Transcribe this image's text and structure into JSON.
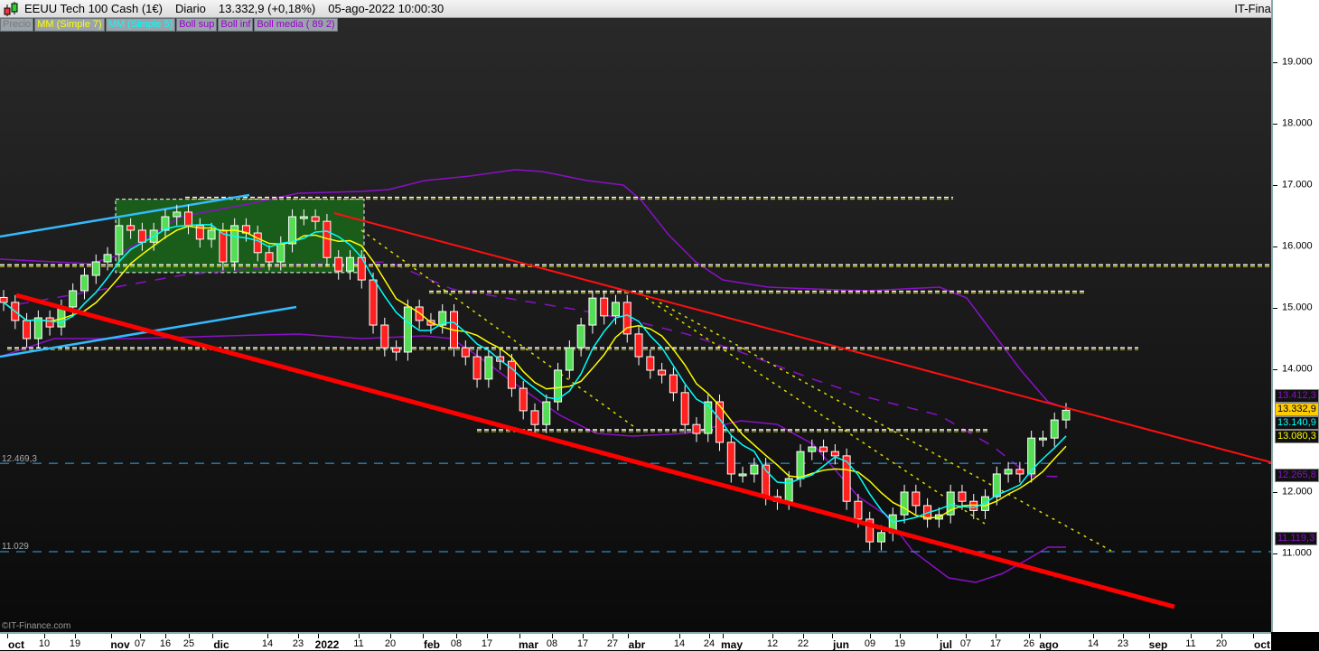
{
  "header": {
    "title": "EEUU Tech 100 Cash (1€)",
    "period": "Diario",
    "price": "13.332,9 (+0,18%)",
    "datetime": "05-ago-2022 10:00:30",
    "brand": "IT-Finance.com"
  },
  "legend": [
    {
      "label": "Precio",
      "color": "#7a7a7a"
    },
    {
      "label": "MM (Simple 7)",
      "color": "#ffff00"
    },
    {
      "label": "MM (Simple 5)",
      "color": "#00ffff"
    },
    {
      "label": "Boll sup",
      "color": "#9900cc"
    },
    {
      "label": "Boll inf",
      "color": "#9900cc"
    },
    {
      "label": "Boll media ( 89 2)",
      "color": "#9900cc"
    }
  ],
  "copyright": "©IT-Finance.com",
  "chart_data": {
    "type": "candlestick",
    "title": "EEUU Tech 100 Cash (1€)",
    "ylim": [
      10000,
      19700
    ],
    "y_ticks": [
      {
        "v": 19000,
        "label": "19.000"
      },
      {
        "v": 18000,
        "label": "18.000"
      },
      {
        "v": 17000,
        "label": "17.000"
      },
      {
        "v": 16000,
        "label": "16.000"
      },
      {
        "v": 15000,
        "label": "15.000"
      },
      {
        "v": 14000,
        "label": "14.000"
      },
      {
        "v": 12000,
        "label": "12.000"
      },
      {
        "v": 11000,
        "label": "11.000"
      }
    ],
    "x_ticks": [
      {
        "label": "oct",
        "bold": true
      },
      {
        "label": "10"
      },
      {
        "label": "19"
      },
      {
        "label": "nov",
        "bold": true
      },
      {
        "label": "07"
      },
      {
        "label": "16"
      },
      {
        "label": "25"
      },
      {
        "label": "dic",
        "bold": true
      },
      {
        "label": "14"
      },
      {
        "label": "23"
      },
      {
        "label": "2022",
        "bold": true
      },
      {
        "label": "11"
      },
      {
        "label": "20"
      },
      {
        "label": "feb",
        "bold": true
      },
      {
        "label": "08"
      },
      {
        "label": "17"
      },
      {
        "label": "mar",
        "bold": true
      },
      {
        "label": "08"
      },
      {
        "label": "17"
      },
      {
        "label": "27"
      },
      {
        "label": "abr",
        "bold": true
      },
      {
        "label": "14"
      },
      {
        "label": "24"
      },
      {
        "label": "may",
        "bold": true
      },
      {
        "label": "12"
      },
      {
        "label": "22"
      },
      {
        "label": "jun",
        "bold": true
      },
      {
        "label": "09"
      },
      {
        "label": "19"
      },
      {
        "label": "jul",
        "bold": true
      },
      {
        "label": "07"
      },
      {
        "label": "17"
      },
      {
        "label": "26"
      },
      {
        "label": "ago",
        "bold": true
      },
      {
        "label": "14"
      },
      {
        "label": "23"
      },
      {
        "label": "sep",
        "bold": true
      },
      {
        "label": "11"
      },
      {
        "label": "20"
      },
      {
        "label": "oct",
        "bold": true
      }
    ],
    "closes": [
      15090,
      14795,
      14500,
      14838,
      14690,
      15015,
      15280,
      15530,
      15750,
      15870,
      16340,
      16265,
      16070,
      16265,
      16485,
      16560,
      16340,
      16120,
      16265,
      15750,
      16340,
      16220,
      15900,
      15750,
      16045,
      16485,
      16485,
      16410,
      15820,
      15600,
      15820,
      15455,
      14720,
      14350,
      14280,
      15015,
      14795,
      14720,
      14940,
      14350,
      14205,
      13840,
      14205,
      14130,
      13690,
      13325,
      13100,
      13470,
      13985,
      14350,
      14720,
      15160,
      14870,
      15090,
      14575,
      14205,
      13985,
      13910,
      13620,
      13100,
      12955,
      13470,
      12810,
      12295,
      12295,
      12440,
      11925,
      11850,
      12220,
      12660,
      12735,
      12660,
      12590,
      11850,
      11560,
      11190,
      11340,
      11630,
      12000,
      11780,
      11560,
      11630,
      12000,
      11850,
      11700,
      11925,
      12295,
      12370,
      12295,
      12880,
      12880,
      13175,
      13332.9
    ],
    "last_close": 13332.9,
    "indicators": {
      "mm7": {
        "name": "MM (Simple 7)",
        "color": "#ffff00",
        "last": "13.080,3"
      },
      "mm5": {
        "name": "MM (Simple 5)",
        "color": "#00ffff",
        "last": "13.140,9"
      },
      "boll_sup": {
        "name": "Boll sup",
        "color": "#9900cc",
        "last": "13.412,3"
      },
      "boll_media": {
        "name": "Boll media ( 89 2)",
        "color": "#9900cc",
        "last": "12.265,8"
      },
      "boll_inf": {
        "name": "Boll inf",
        "color": "#9900cc",
        "last": "11.119,3"
      }
    },
    "price_tag": "13.332,9",
    "horizontal_levels": [
      {
        "price": 16800,
        "style": "dashed-white"
      },
      {
        "price": 15700,
        "style": "dashed-white"
      },
      {
        "price": 15270,
        "style": "dashed-white"
      },
      {
        "price": 14350,
        "style": "dashed-white"
      },
      {
        "price": 13015,
        "style": "dashed-white"
      },
      {
        "price": 12469.3,
        "label": "12.469,3",
        "style": "dashed-cyan"
      },
      {
        "price": 11029,
        "label": "11.029",
        "style": "dashed-cyan"
      }
    ],
    "range_box": {
      "top": 16770,
      "bottom": 15575,
      "color": "#1a5c1a"
    },
    "colors": {
      "up": "#55dd55",
      "down": "#ff2020",
      "trend_main": "#ff0000",
      "trend_up": "#33bbff"
    }
  }
}
